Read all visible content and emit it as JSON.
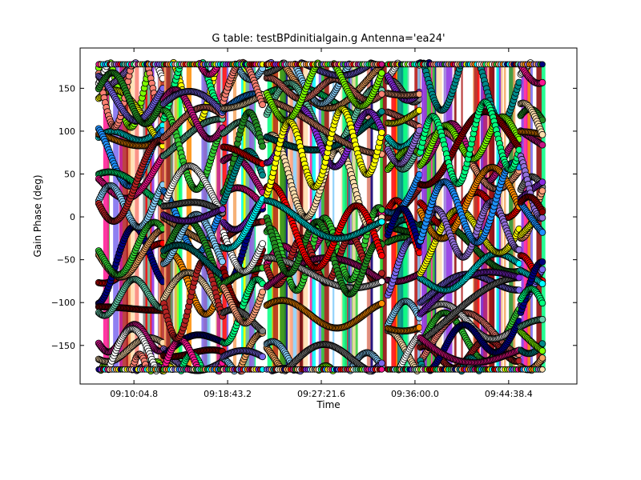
{
  "chart_data": {
    "type": "scatter",
    "title": "G table: testBPdinitialgain.g      Antenna='ea24'",
    "xlabel": "Time",
    "ylabel": "Gain Phase (deg)",
    "xlim": [
      "09:05:07",
      "09:50:56"
    ],
    "ylim": [
      -195,
      197
    ],
    "x_ticks": [
      "09:10:04.8",
      "09:18:43.2",
      "09:27:21.6",
      "09:36:00.0",
      "09:44:38.4"
    ],
    "y_ticks": [
      -150,
      -100,
      -50,
      0,
      50,
      100,
      150
    ],
    "grid": false,
    "legend": "none",
    "scans": [
      {
        "start": "09:06:50",
        "end": "09:12:45"
      },
      {
        "start": "09:12:50",
        "end": "09:18:15"
      },
      {
        "start": "09:18:20",
        "end": "09:21:58"
      },
      {
        "start": "09:22:20",
        "end": "09:33:00"
      },
      {
        "start": "09:33:30",
        "end": "09:36:25"
      },
      {
        "start": "09:36:30",
        "end": "09:45:40"
      },
      {
        "start": "09:45:45",
        "end": "09:47:50"
      }
    ],
    "value_range": [
      -180,
      180
    ],
    "series_colors": [
      "#ff0000",
      "#00ffff",
      "#7cfc00",
      "#ffff00",
      "#ff8c00",
      "#9370db",
      "#1e90ff",
      "#000080",
      "#8b0000",
      "#00ff7f",
      "#ff1493",
      "#f4a460",
      "#ffdead",
      "#66cdaa",
      "#87cefa",
      "#32cd32",
      "#fa8072",
      "#b22222",
      "#c71585",
      "#ffffff",
      "#7b68ee",
      "#228b22",
      "#808080",
      "#008b8b",
      "#8a2be2",
      "#ffa07a"
    ]
  }
}
